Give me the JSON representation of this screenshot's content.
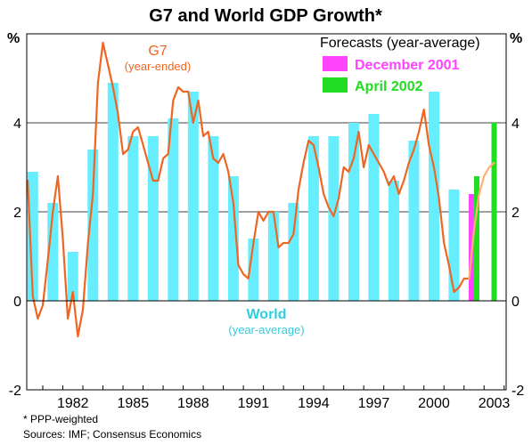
{
  "chart_data": {
    "type": "bar",
    "title": "G7 and World GDP Growth*",
    "y_unit_left": "%",
    "y_unit_right": "%",
    "ylim": [
      -2,
      6
    ],
    "yticks": [
      -2,
      0,
      2,
      4
    ],
    "grid": "horizontal",
    "xtick_labels": [
      "1982",
      "1985",
      "1988",
      "1991",
      "1994",
      "1997",
      "2000",
      "2003"
    ],
    "world_label": "World",
    "world_sublabel": "(year-average)",
    "g7_label": "G7",
    "g7_sublabel": "(year-ended)",
    "forecast_legend_title": "Forecasts (year-average)",
    "series": [
      {
        "name": "World",
        "color": "#66eeff",
        "x": [
          1980,
          1981,
          1982,
          1983,
          1984,
          1985,
          1986,
          1987,
          1988,
          1989,
          1990,
          1991,
          1992,
          1993,
          1994,
          1995,
          1996,
          1997,
          1998,
          1999,
          2000,
          2001
        ],
        "values": [
          2.9,
          2.2,
          1.1,
          3.4,
          4.9,
          3.7,
          3.7,
          4.1,
          4.7,
          3.7,
          2.8,
          1.4,
          2.0,
          2.2,
          3.7,
          3.7,
          4.0,
          4.2,
          2.7,
          3.6,
          4.7,
          2.5
        ]
      },
      {
        "name": "December 2001",
        "color": "#ff44ff",
        "x": [
          2002
        ],
        "values": [
          2.4
        ]
      },
      {
        "name": "April 2002",
        "color": "#22dd22",
        "x": [
          2002,
          2003
        ],
        "values": [
          2.8,
          4.0
        ]
      },
      {
        "name": "G7",
        "color": "#ee6622",
        "x": [
          1979.75,
          1980.0,
          1980.25,
          1980.5,
          1980.75,
          1981.0,
          1981.25,
          1981.5,
          1981.75,
          1982.0,
          1982.25,
          1982.5,
          1982.75,
          1983.0,
          1983.25,
          1983.5,
          1983.75,
          1984.0,
          1984.25,
          1984.5,
          1984.75,
          1985.0,
          1985.25,
          1985.5,
          1985.75,
          1986.0,
          1986.25,
          1986.5,
          1986.75,
          1987.0,
          1987.25,
          1987.5,
          1987.75,
          1988.0,
          1988.25,
          1988.5,
          1988.75,
          1989.0,
          1989.25,
          1989.5,
          1989.75,
          1990.0,
          1990.25,
          1990.5,
          1990.75,
          1991.0,
          1991.25,
          1991.5,
          1991.75,
          1992.0,
          1992.25,
          1992.5,
          1992.75,
          1993.0,
          1993.25,
          1993.5,
          1993.75,
          1994.0,
          1994.25,
          1994.5,
          1994.75,
          1995.0,
          1995.25,
          1995.5,
          1995.75,
          1996.0,
          1996.25,
          1996.5,
          1996.75,
          1997.0,
          1997.25,
          1997.5,
          1997.75,
          1998.0,
          1998.25,
          1998.5,
          1998.75,
          1999.0,
          1999.25,
          1999.5,
          1999.75,
          2000.0,
          2000.25,
          2000.5,
          2000.75,
          2001.0,
          2001.25,
          2001.5,
          2001.75
        ],
        "values": [
          2.7,
          0.1,
          -0.4,
          -0.1,
          0.9,
          2.0,
          2.8,
          1.4,
          -0.4,
          0.2,
          -0.8,
          -0.2,
          1.3,
          2.4,
          4.9,
          5.8,
          5.3,
          4.8,
          4.2,
          3.3,
          3.4,
          3.8,
          3.9,
          3.5,
          3.1,
          2.7,
          2.7,
          3.2,
          3.3,
          4.5,
          4.8,
          4.7,
          4.7,
          4.0,
          4.5,
          3.7,
          3.8,
          3.2,
          3.1,
          3.3,
          2.9,
          2.2,
          0.8,
          0.6,
          0.5,
          1.3,
          2.0,
          1.8,
          2.0,
          2.0,
          1.2,
          1.3,
          1.3,
          1.5,
          2.5,
          3.1,
          3.6,
          3.5,
          3.0,
          2.4,
          2.1,
          1.9,
          2.3,
          3.0,
          2.9,
          3.2,
          3.8,
          3.0,
          3.5,
          3.3,
          3.1,
          2.9,
          2.6,
          2.8,
          2.4,
          2.7,
          3.1,
          3.4,
          3.8,
          4.3,
          3.5,
          3.0,
          2.3,
          1.3,
          0.8,
          0.2,
          0.3,
          0.5,
          0.5
        ]
      },
      {
        "name": "G7 forecast",
        "color": "#ffb070",
        "x": [
          2001.75,
          2002.0,
          2002.25,
          2002.5,
          2002.75,
          2003.0
        ],
        "values": [
          0.5,
          1.6,
          2.4,
          2.8,
          3.0,
          3.1
        ]
      }
    ]
  },
  "footnote": "* PPP-weighted",
  "source": "Sources: IMF; Consensus Economics"
}
